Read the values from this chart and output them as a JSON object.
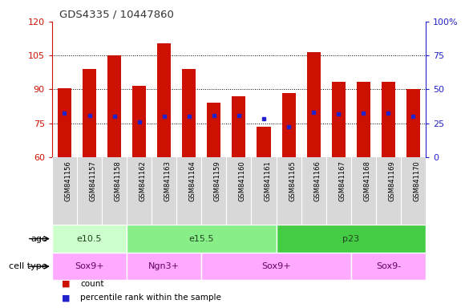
{
  "title": "GDS4335 / 10447860",
  "samples": [
    "GSM841156",
    "GSM841157",
    "GSM841158",
    "GSM841162",
    "GSM841163",
    "GSM841164",
    "GSM841159",
    "GSM841160",
    "GSM841161",
    "GSM841165",
    "GSM841166",
    "GSM841167",
    "GSM841168",
    "GSM841169",
    "GSM841170"
  ],
  "bar_tops": [
    90.5,
    99.0,
    105.0,
    91.5,
    110.5,
    99.0,
    84.0,
    87.0,
    73.5,
    88.5,
    106.5,
    93.5,
    93.5,
    93.5,
    90.0
  ],
  "bar_bottom": 60,
  "blue_dots": [
    79.5,
    78.5,
    78.0,
    75.5,
    78.0,
    78.0,
    78.5,
    78.5,
    77.0,
    73.5,
    80.0,
    79.0,
    79.5,
    79.5,
    78.0
  ],
  "ylim": [
    60,
    120
  ],
  "yticks_left": [
    60,
    75,
    90,
    105,
    120
  ],
  "yticks_right": [
    0,
    25,
    50,
    75,
    100
  ],
  "bar_color": "#cc1100",
  "dot_color": "#2222cc",
  "age_groups": [
    {
      "label": "e10.5",
      "start": 0,
      "end": 3,
      "color": "#ccffcc"
    },
    {
      "label": "e15.5",
      "start": 3,
      "end": 9,
      "color": "#88ee88"
    },
    {
      "label": "p23",
      "start": 9,
      "end": 15,
      "color": "#44cc44"
    }
  ],
  "cell_groups": [
    {
      "label": "Sox9+",
      "start": 0,
      "end": 3,
      "color": "#ffaaff"
    },
    {
      "label": "Ngn3+",
      "start": 3,
      "end": 6,
      "color": "#ffaaff"
    },
    {
      "label": "Sox9+",
      "start": 6,
      "end": 12,
      "color": "#ffaaff"
    },
    {
      "label": "Sox9-",
      "start": 12,
      "end": 15,
      "color": "#ffaaff"
    }
  ],
  "age_label": "age",
  "cell_label": "cell type",
  "legend_count": "count",
  "legend_pct": "percentile rank within the sample",
  "title_color": "#333333",
  "left_axis_color": "#cc1100",
  "right_axis_color": "#2222cc",
  "bar_width": 0.55,
  "plot_bg": "#ffffff",
  "xtick_bg": "#d8d8d8"
}
